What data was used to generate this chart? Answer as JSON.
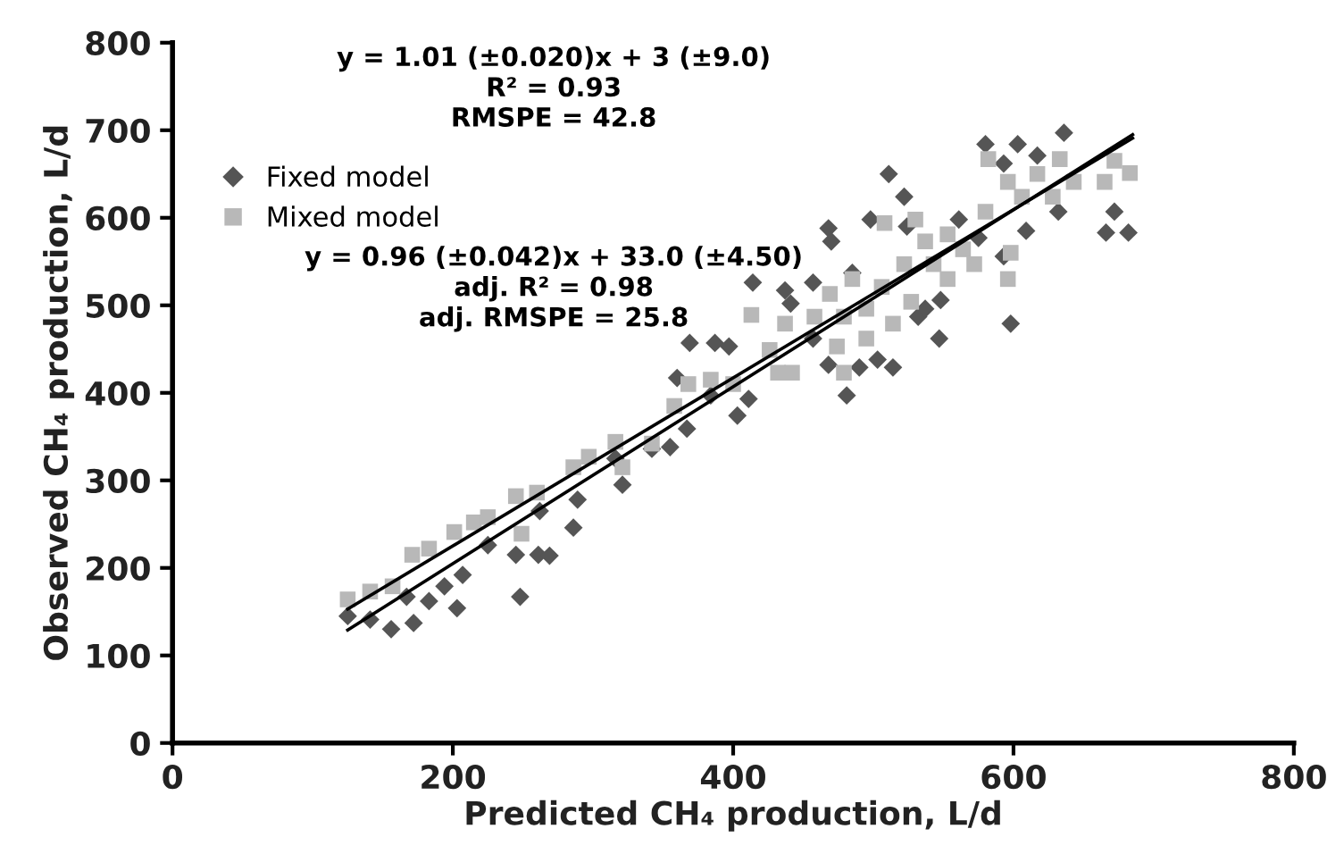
{
  "chart_data": {
    "type": "scatter",
    "xlabel": "Predicted CH₄ production, L/d",
    "ylabel": "Observed CH₄ production, L/d",
    "xlim": [
      0,
      800
    ],
    "ylim": [
      0,
      800
    ],
    "xticks": [
      0,
      200,
      400,
      600,
      800
    ],
    "yticks": [
      0,
      100,
      200,
      300,
      400,
      500,
      600,
      700,
      800
    ],
    "grid": false,
    "legend": "top left",
    "annotations": [
      "y = 1.01 (±0.020)x + 3 (±9.0)\nR² = 0.93\nRMSPE = 42.8",
      "y = 0.96 (±0.042)x + 33.0 (±4.50)\nadj. R² = 0.98\nadj. RMSPE = 25.8"
    ],
    "series": [
      {
        "name": "Fixed model",
        "marker": "diamond",
        "color": "#555555",
        "x": [
          125,
          141,
          156,
          172,
          167,
          183,
          203,
          194,
          207,
          225,
          245,
          248,
          261,
          269,
          262,
          286,
          289,
          321,
          316,
          342,
          355,
          367,
          360,
          369,
          387,
          397,
          384,
          411,
          403,
          414,
          437,
          441,
          457,
          468,
          470,
          485,
          457,
          468,
          481,
          490,
          503,
          514,
          498,
          511,
          522,
          524,
          532,
          548,
          547,
          561,
          580,
          593,
          603,
          617,
          636,
          632,
          609,
          593,
          598,
          666,
          672,
          682,
          575,
          537
        ],
        "values": [
          145,
          141,
          130,
          137,
          167,
          162,
          154,
          179,
          192,
          226,
          215,
          167,
          215,
          214,
          265,
          246,
          278,
          295,
          325,
          336,
          338,
          359,
          417,
          457,
          457,
          453,
          397,
          393,
          374,
          526,
          517,
          502,
          526,
          588,
          573,
          537,
          462,
          432,
          397,
          429,
          438,
          429,
          598,
          650,
          624,
          590,
          487,
          506,
          462,
          598,
          684,
          662,
          684,
          671,
          697,
          607,
          585,
          556,
          479,
          583,
          607,
          583,
          577,
          496
        ]
      },
      {
        "name": "Mixed model",
        "marker": "square",
        "color": "#b8b8b8",
        "x": [
          125,
          141,
          157,
          171,
          183,
          201,
          215,
          225,
          245,
          260,
          249,
          286,
          297,
          316,
          321,
          342,
          358,
          368,
          384,
          400,
          413,
          432,
          442,
          426,
          437,
          458,
          469,
          479,
          474,
          485,
          495,
          506,
          514,
          508,
          522,
          530,
          537,
          543,
          553,
          564,
          572,
          580,
          582,
          596,
          598,
          596,
          606,
          617,
          628,
          633,
          643,
          665,
          672,
          683,
          479,
          527,
          495,
          553
        ],
        "values": [
          164,
          173,
          179,
          215,
          222,
          241,
          252,
          258,
          282,
          286,
          239,
          315,
          327,
          344,
          315,
          342,
          385,
          410,
          415,
          410,
          489,
          423,
          423,
          449,
          479,
          487,
          513,
          487,
          453,
          530,
          496,
          521,
          479,
          594,
          547,
          598,
          573,
          547,
          581,
          564,
          547,
          607,
          667,
          641,
          560,
          530,
          624,
          650,
          624,
          667,
          641,
          641,
          665,
          651,
          423,
          504,
          462,
          530
        ]
      },
      {
        "type": "line",
        "line_style": "solid",
        "color": "#000000",
        "x": [
          125,
          685
        ],
        "values": [
          129,
          695
        ]
      },
      {
        "type": "line",
        "line_style": "solid",
        "color": "#000000",
        "x": [
          125,
          685
        ],
        "values": [
          153,
          691
        ]
      }
    ]
  }
}
